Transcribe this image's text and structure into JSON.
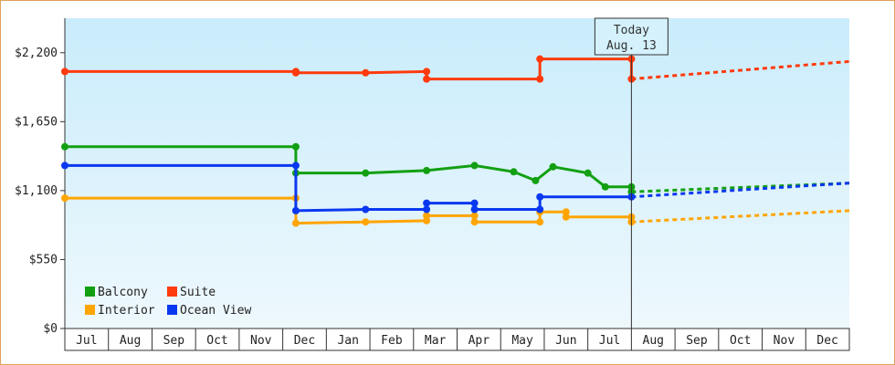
{
  "chart_data": {
    "type": "line",
    "title": "",
    "xlabel": "",
    "ylabel": "",
    "ylim": [
      0,
      2475
    ],
    "ytick_values": [
      0,
      550,
      1100,
      1650,
      2200
    ],
    "ytick_labels": [
      "$0",
      "$550",
      "$1,100",
      "$1,650",
      "$2,200"
    ],
    "x_months": [
      "Jul",
      "Aug",
      "Sep",
      "Oct",
      "Nov",
      "Dec",
      "Jan",
      "Feb",
      "Mar",
      "Apr",
      "May",
      "Jun",
      "Jul",
      "Aug",
      "Sep",
      "Oct",
      "Nov",
      "Dec"
    ],
    "grid": false,
    "legend_position": "bottom-left",
    "annotation": {
      "label_line1": "Today",
      "label_line2": "Aug. 13",
      "x": 13.0
    },
    "series": [
      {
        "name": "Balcony",
        "color": "#12a012",
        "points": [
          [
            0,
            1450
          ],
          [
            5.3,
            1450
          ],
          [
            5.3,
            1240
          ],
          [
            6.9,
            1240
          ],
          [
            8.3,
            1260
          ],
          [
            9.4,
            1300
          ],
          [
            10.3,
            1250
          ],
          [
            10.8,
            1180
          ],
          [
            11.2,
            1290
          ],
          [
            12.0,
            1240
          ],
          [
            12.4,
            1130
          ],
          [
            13.0,
            1130
          ],
          [
            13.0,
            1090
          ]
        ],
        "forecast": [
          [
            13.0,
            1090
          ],
          [
            18.0,
            1160
          ]
        ]
      },
      {
        "name": "Suite",
        "color": "#ff3a0d",
        "points": [
          [
            0,
            2050
          ],
          [
            5.3,
            2050
          ],
          [
            5.3,
            2040
          ],
          [
            6.9,
            2040
          ],
          [
            8.3,
            2050
          ],
          [
            8.3,
            1990
          ],
          [
            10.9,
            1990
          ],
          [
            10.9,
            2150
          ],
          [
            13.0,
            2150
          ],
          [
            13.0,
            1990
          ]
        ],
        "forecast": [
          [
            13.0,
            1990
          ],
          [
            18.0,
            2130
          ]
        ]
      },
      {
        "name": "Interior",
        "color": "#ffa500",
        "points": [
          [
            0,
            1040
          ],
          [
            5.3,
            1040
          ],
          [
            5.3,
            840
          ],
          [
            6.9,
            850
          ],
          [
            8.3,
            860
          ],
          [
            8.3,
            900
          ],
          [
            9.4,
            900
          ],
          [
            9.4,
            850
          ],
          [
            10.9,
            850
          ],
          [
            10.9,
            930
          ],
          [
            11.5,
            930
          ],
          [
            11.5,
            890
          ],
          [
            13.0,
            890
          ],
          [
            13.0,
            850
          ]
        ],
        "forecast": [
          [
            13.0,
            850
          ],
          [
            18.0,
            940
          ]
        ]
      },
      {
        "name": "Ocean View",
        "color": "#0a38f0",
        "points": [
          [
            0,
            1300
          ],
          [
            5.3,
            1300
          ],
          [
            5.3,
            940
          ],
          [
            6.9,
            950
          ],
          [
            8.3,
            950
          ],
          [
            8.3,
            1000
          ],
          [
            9.4,
            1000
          ],
          [
            9.4,
            950
          ],
          [
            10.9,
            950
          ],
          [
            10.9,
            1050
          ],
          [
            13.0,
            1050
          ]
        ],
        "forecast": [
          [
            13.0,
            1050
          ],
          [
            18.0,
            1160
          ]
        ]
      }
    ]
  }
}
